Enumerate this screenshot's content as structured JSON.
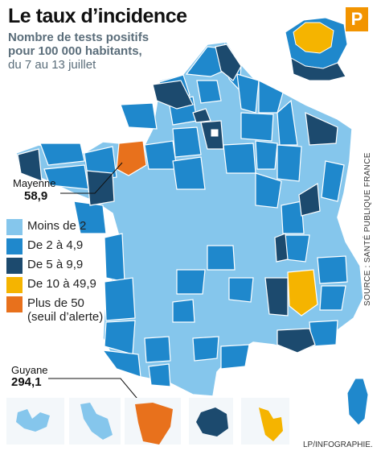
{
  "title": "Le taux d’incidence",
  "subtitle": "Nombre de tests positifs pour 100 000 habitants,",
  "dates": "du 7 au 13 juillet",
  "logo_letter": "P",
  "colors": {
    "moins_de_2": "#85c6ec",
    "de_2_a_4_9": "#1f88cc",
    "de_5_a_9_9": "#1c4a6e",
    "de_10_a_49_9": "#f5b400",
    "plus_de_50": "#e8711c",
    "outline": "#ffffff"
  },
  "legend": [
    {
      "label": "Moins de 2",
      "color": "#85c6ec"
    },
    {
      "label": "De 2 à 4,9",
      "color": "#1f88cc"
    },
    {
      "label": "De 5 à 9,9",
      "color": "#1c4a6e"
    },
    {
      "label": "De 10 à 49,9",
      "color": "#f5b400"
    },
    {
      "label": "Plus de 50",
      "label2": "(seuil d’alerte)",
      "color": "#e8711c"
    }
  ],
  "callouts": {
    "mayenne": {
      "name": "Mayenne",
      "value": "58,9"
    },
    "guyane": {
      "name": "Guyane",
      "value": "294,1"
    }
  },
  "source": "SOURCE : SANTÉ PUBLIQUE FRANCE",
  "credit": "LP/INFOGRAPHIE."
}
